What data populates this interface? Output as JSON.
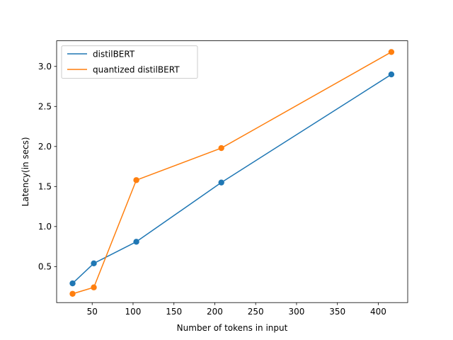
{
  "chart_data": {
    "type": "line",
    "title": "",
    "xlabel": "Number of tokens in input",
    "ylabel": "Latency(in secs)",
    "xlim": [
      6.5,
      436
    ],
    "ylim": [
      0.05,
      3.32
    ],
    "xticks": [
      50,
      100,
      150,
      200,
      250,
      300,
      350,
      400
    ],
    "yticks": [
      0.5,
      1.0,
      1.5,
      2.0,
      2.5,
      3.0
    ],
    "grid": false,
    "legend": "upper-left",
    "series": [
      {
        "name": "distilBERT",
        "color": "#1f77b4",
        "x": [
          26,
          52,
          104,
          208,
          416
        ],
        "y": [
          0.29,
          0.54,
          0.81,
          1.55,
          2.9
        ]
      },
      {
        "name": "quantized distilBERT",
        "color": "#ff7f0e",
        "x": [
          26,
          52,
          104,
          208,
          416
        ],
        "y": [
          0.16,
          0.24,
          1.58,
          1.98,
          3.18
        ]
      }
    ]
  }
}
